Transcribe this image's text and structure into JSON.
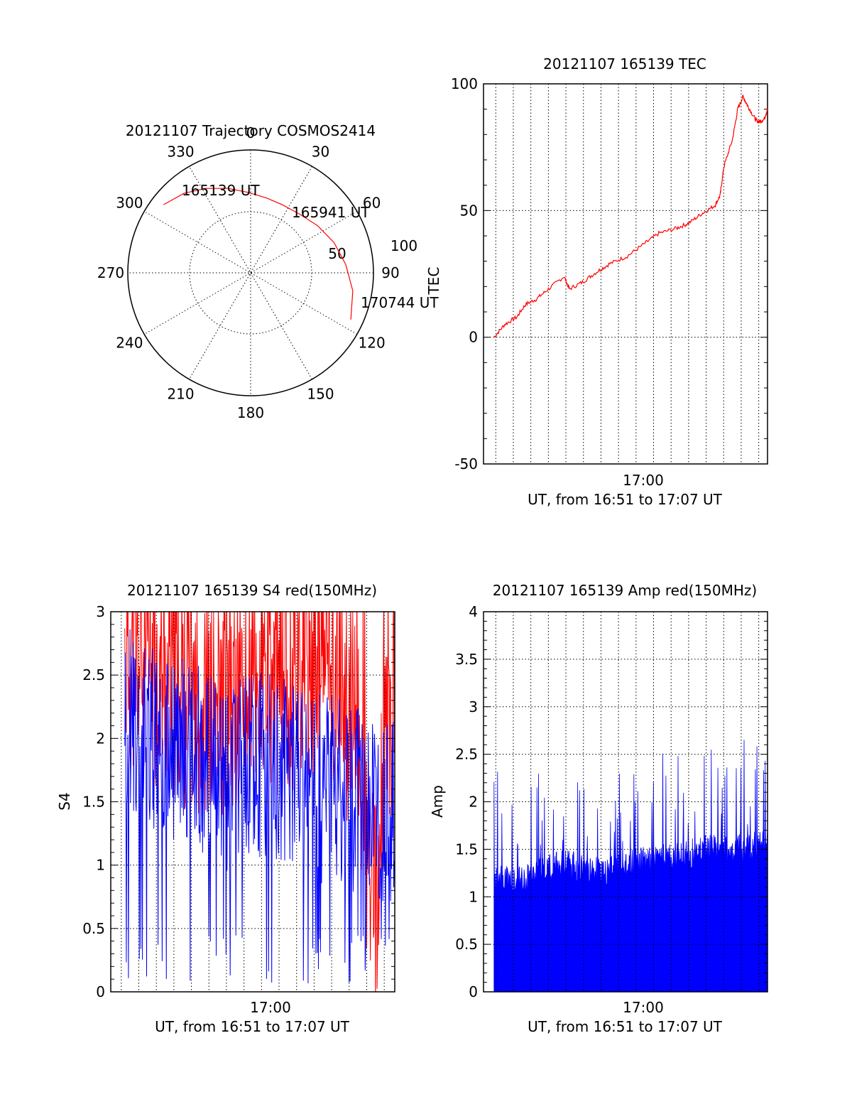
{
  "colors": {
    "red": "#ff0000",
    "blue": "#0000ff",
    "axis": "#000000"
  },
  "chart_data": [
    {
      "type": "polar",
      "title": "20121107 Trajectory COSMOS2414",
      "angle_labels": [
        "0",
        "30",
        "60",
        "90",
        "120",
        "150",
        "180",
        "210",
        "240",
        "270",
        "300",
        "330"
      ],
      "radius_labels": [
        "50",
        "100"
      ],
      "trajectory": {
        "azimuth_deg": [
          -52,
          -40,
          -28,
          -15,
          -2,
          12,
          25,
          40,
          55,
          70,
          85,
          100,
          115
        ],
        "elevation_deg": [
          9,
          14,
          20,
          26,
          31,
          34,
          35,
          34,
          30,
          25,
          20,
          14,
          9
        ]
      },
      "annotations": [
        "165139 UT",
        "165941 UT",
        "170744 UT"
      ],
      "side_label": "TEC"
    },
    {
      "type": "line",
      "title": "20121107 165139 TEC",
      "xlabel": "UT, from 16:51 to 17:07 UT",
      "ylabel": "",
      "x_tick_label": "17:00",
      "xlim_minutes": [
        51.3,
        67.5
      ],
      "ylim": [
        -50,
        100
      ],
      "y_ticks": [
        "100",
        "50",
        "0",
        "-50"
      ],
      "x": [
        51.9,
        52.5,
        53.2,
        53.7,
        54.3,
        55.0,
        55.9,
        56.2,
        57.0,
        57.8,
        58.5,
        59.5,
        60.5,
        61.3,
        62.3,
        63.0,
        63.8,
        64.5,
        64.8,
        65.0,
        65.5,
        65.8,
        66.1,
        66.4,
        66.8,
        67.0,
        67.3,
        67.5
      ],
      "y": [
        0,
        5,
        8,
        13,
        15,
        19,
        24,
        19,
        22,
        26,
        29,
        32,
        37,
        41,
        43,
        45,
        49,
        52,
        56,
        67,
        78,
        90,
        95,
        91,
        86,
        85,
        86,
        90
      ],
      "color": "red"
    },
    {
      "type": "line",
      "title": "20121107 165139 S4 red(150MHz)",
      "xlabel": "UT, from 16:51 to 17:07 UT",
      "ylabel": "S4",
      "x_tick_label": "17:00",
      "xlim_minutes": [
        50.4,
        66.6
      ],
      "ylim": [
        0,
        3
      ],
      "y_ticks": [
        "3",
        "2.5",
        "2",
        "1.5",
        "1",
        "0.5",
        "0"
      ],
      "series": [
        {
          "color": "red",
          "x": [
            51.2,
            53.0,
            55.0,
            57.0,
            59.0,
            61.0,
            62.5,
            63.5,
            64.5,
            65.3,
            65.6,
            66.0,
            66.6
          ],
          "y": [
            2.6,
            2.5,
            2.3,
            2.2,
            2.4,
            2.5,
            2.6,
            2.4,
            2.0,
            0.7,
            0.6,
            1.9,
            2.1
          ]
        },
        {
          "color": "blue",
          "x": [
            51.2,
            53.0,
            55.0,
            57.0,
            59.0,
            61.0,
            62.5,
            63.5,
            64.5,
            65.3,
            65.6,
            66.0,
            66.6
          ],
          "y": [
            2.2,
            2.0,
            1.9,
            1.7,
            1.8,
            1.7,
            1.6,
            1.6,
            1.5,
            1.5,
            1.4,
            1.4,
            1.5
          ]
        }
      ]
    },
    {
      "type": "bar",
      "title": "20121107 165139 Amp red(150MHz)",
      "xlabel": "UT, from 16:51 to 17:07 UT",
      "ylabel": "Amp",
      "x_tick_label": "17:00",
      "xlim_minutes": [
        51.3,
        67.5
      ],
      "ylim": [
        0,
        4
      ],
      "y_ticks": [
        "4",
        "3.5",
        "3",
        "2.5",
        "2",
        "1.5",
        "1",
        "0.5",
        "0"
      ],
      "x": [
        51.9,
        53.0,
        54.0,
        55.0,
        56.0,
        57.0,
        58.0,
        59.0,
        60.0,
        61.0,
        62.0,
        63.0,
        64.0,
        65.0,
        66.0,
        67.5
      ],
      "y": [
        1.15,
        1.1,
        1.2,
        1.25,
        1.3,
        1.25,
        1.2,
        1.25,
        1.3,
        1.35,
        1.35,
        1.4,
        1.45,
        1.45,
        1.45,
        1.5
      ],
      "color": "blue"
    }
  ]
}
